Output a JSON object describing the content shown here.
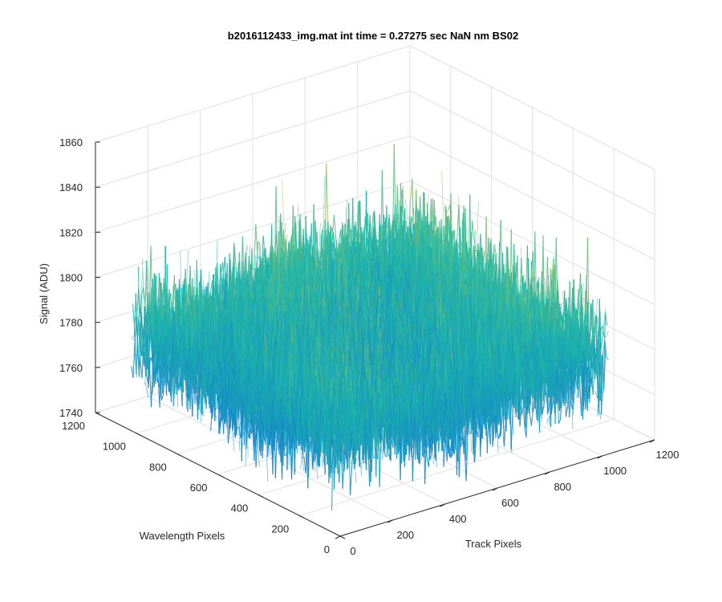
{
  "chart_data": {
    "type": "surface3d",
    "title": "b2016112433_img.mat int time = 0.27275 sec  NaN nm BS02",
    "xlabel": "Track Pixels",
    "ylabel": "Wavelength Pixels",
    "zlabel": "Signal (ADU)",
    "xlim": [
      0,
      1200
    ],
    "ylim": [
      0,
      1200
    ],
    "zlim": [
      1740,
      1860
    ],
    "x_ticks": [
      "0",
      "200",
      "400",
      "600",
      "800",
      "1000",
      "1200"
    ],
    "y_ticks": [
      "0",
      "200",
      "400",
      "600",
      "800",
      "1000",
      "1200"
    ],
    "z_ticks": [
      "1740",
      "1760",
      "1780",
      "1800",
      "1820",
      "1840",
      "1860"
    ],
    "grid": true,
    "colormap": "parula",
    "data_extent": {
      "x": [
        0,
        1024
      ],
      "y": [
        0,
        1024
      ]
    },
    "surface_summary": {
      "baseline_signal": 1783,
      "typical_min": 1760,
      "typical_max": 1825,
      "noted_peaks": [
        {
          "x": 520,
          "y": 540,
          "z": 1850
        },
        {
          "x": 80,
          "y": 960,
          "z": 1822
        }
      ]
    },
    "colors": {
      "low": "#0f76d6",
      "mid": "#1fb8a8",
      "high": "#d9c447",
      "grid": "#e0e0e0",
      "axis": "#262626"
    }
  }
}
